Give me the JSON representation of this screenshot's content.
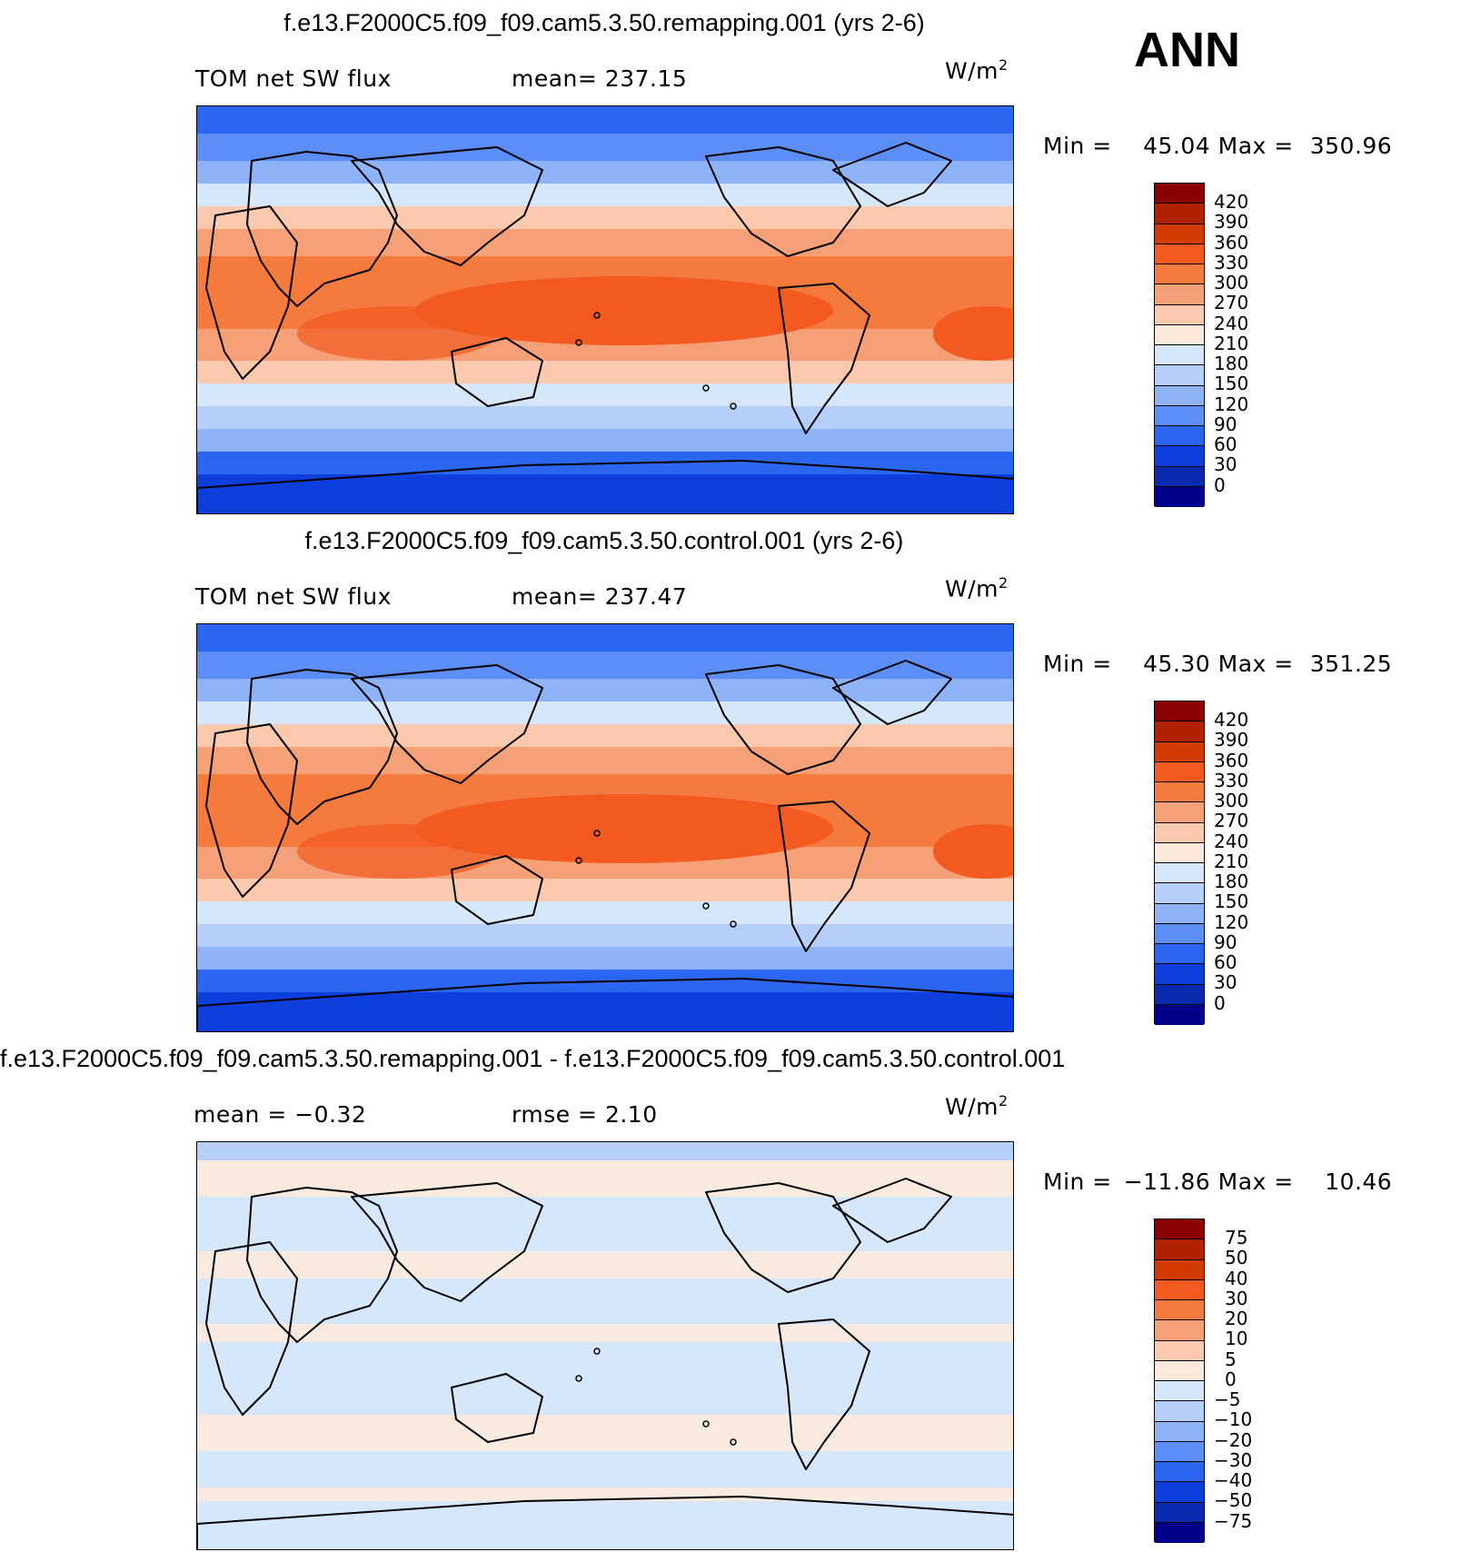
{
  "season": "ANN",
  "units_base": "W/m",
  "units_exp": "2",
  "chart_data": [
    {
      "type": "heatmap",
      "title": "f.e13.F2000C5.f09_f09.cam5.3.50.remapping.001 (yrs 2-6)",
      "left_label": "TOM net SW flux",
      "center_label": "mean=  237.15",
      "min_label": "Min =",
      "min_value": "45.04",
      "max_label": "Max =",
      "max_value": "350.96",
      "mean": 237.15,
      "min": 45.04,
      "max": 350.96,
      "levels": [
        "420",
        "390",
        "360",
        "330",
        "300",
        "270",
        "240",
        "210",
        "180",
        "150",
        "120",
        "90",
        "60",
        "30",
        "0"
      ],
      "colors": [
        "#8b0000",
        "#b22200",
        "#d13b00",
        "#f25a20",
        "#f47a3e",
        "#f6a078",
        "#fbc9ad",
        "#fdeadc",
        "#d6e7fb",
        "#b6cffa",
        "#8fb3f8",
        "#5d8ef7",
        "#2b66f0",
        "#0d3fdc",
        "#0a2ab0",
        "#00008a"
      ],
      "field": "absolute"
    },
    {
      "type": "heatmap",
      "title": "f.e13.F2000C5.f09_f09.cam5.3.50.control.001 (yrs 2-6)",
      "left_label": "TOM net SW flux",
      "center_label": "mean=  237.47",
      "min_label": "Min =",
      "min_value": "45.30",
      "max_label": "Max =",
      "max_value": "351.25",
      "mean": 237.47,
      "min": 45.3,
      "max": 351.25,
      "levels": [
        "420",
        "390",
        "360",
        "330",
        "300",
        "270",
        "240",
        "210",
        "180",
        "150",
        "120",
        "90",
        "60",
        "30",
        "0"
      ],
      "colors": [
        "#8b0000",
        "#b22200",
        "#d13b00",
        "#f25a20",
        "#f47a3e",
        "#f6a078",
        "#fbc9ad",
        "#fdeadc",
        "#d6e7fb",
        "#b6cffa",
        "#8fb3f8",
        "#5d8ef7",
        "#2b66f0",
        "#0d3fdc",
        "#0a2ab0",
        "#00008a"
      ],
      "field": "absolute"
    },
    {
      "type": "heatmap",
      "title": "f.e13.F2000C5.f09_f09.cam5.3.50.remapping.001 - f.e13.F2000C5.f09_f09.cam5.3.50.control.001",
      "left_label": "mean =   −0.32",
      "center_label": "rmse =    2.10",
      "min_label": "Min =",
      "min_value": "−11.86",
      "max_label": "Max =",
      "max_value": "10.46",
      "mean": -0.32,
      "rmse": 2.1,
      "min": -11.86,
      "max": 10.46,
      "levels": [
        "75",
        "50",
        "40",
        "30",
        "20",
        "10",
        "5",
        "0",
        "−5",
        "−10",
        "−20",
        "−30",
        "−40",
        "−50",
        "−75"
      ],
      "colors": [
        "#8b0000",
        "#b22200",
        "#d13b00",
        "#f25a20",
        "#f47a3e",
        "#f6a078",
        "#fbc9ad",
        "#fdeadc",
        "#d6e7fb",
        "#b6cffa",
        "#8fb3f8",
        "#5d8ef7",
        "#2b66f0",
        "#0d3fdc",
        "#0a2ab0",
        "#00008a"
      ],
      "field": "difference"
    }
  ]
}
